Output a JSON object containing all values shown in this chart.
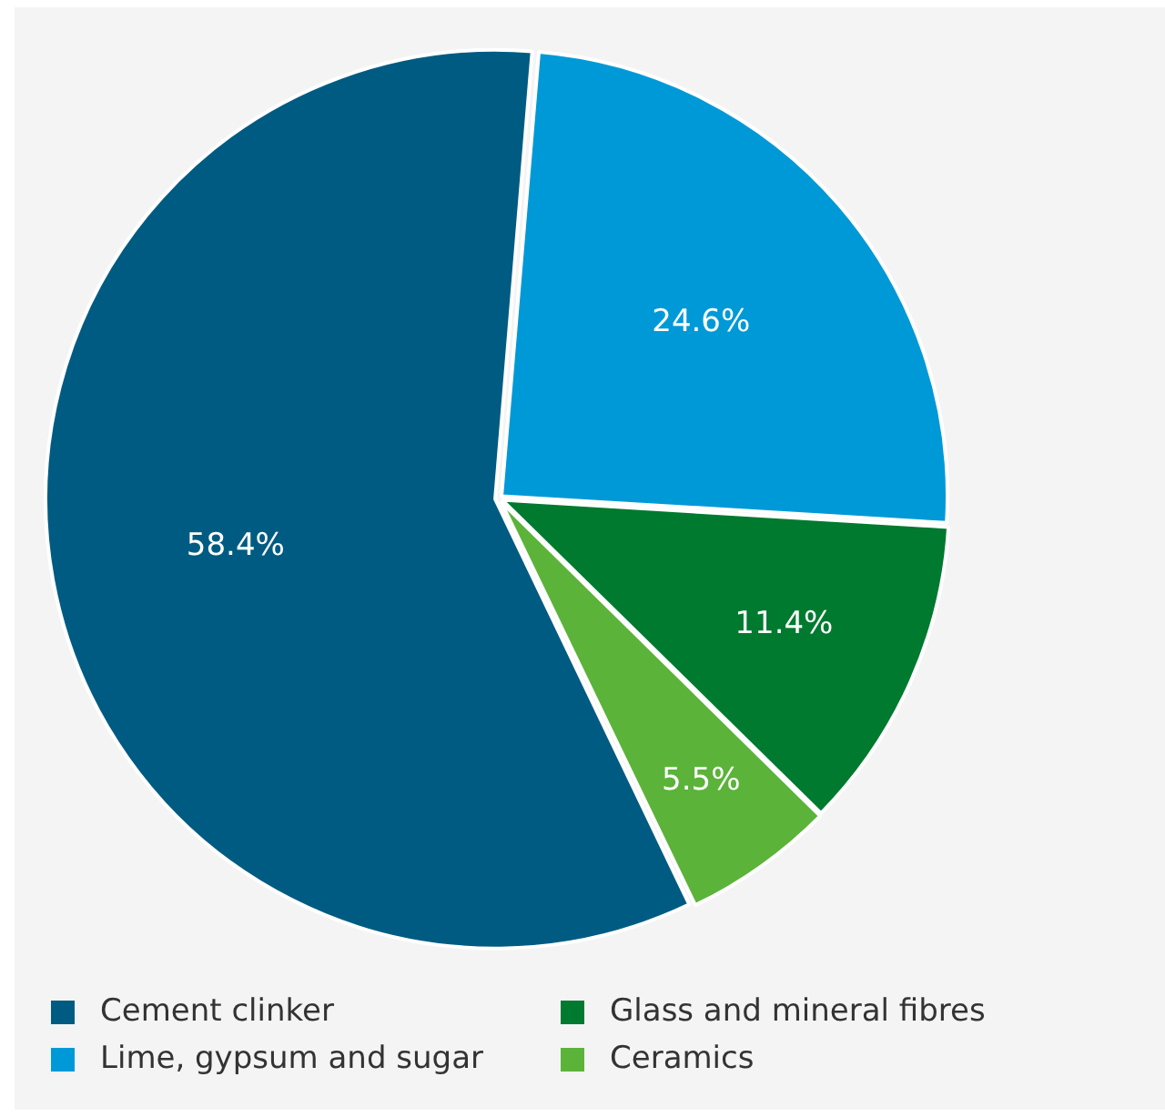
{
  "chart_data": {
    "type": "pie",
    "categories": [
      "Cement clinker",
      "Lime, gypsum and sugar",
      "Glass and mineral fibres",
      "Ceramics"
    ],
    "values": [
      58.4,
      24.6,
      11.4,
      5.5
    ],
    "value_labels": [
      "58.4%",
      "24.6%",
      "11.4%",
      "5.5%"
    ],
    "colors": [
      "#005b82",
      "#0099d8",
      "#007a2f",
      "#5bb33a"
    ],
    "legend": "bottom"
  }
}
